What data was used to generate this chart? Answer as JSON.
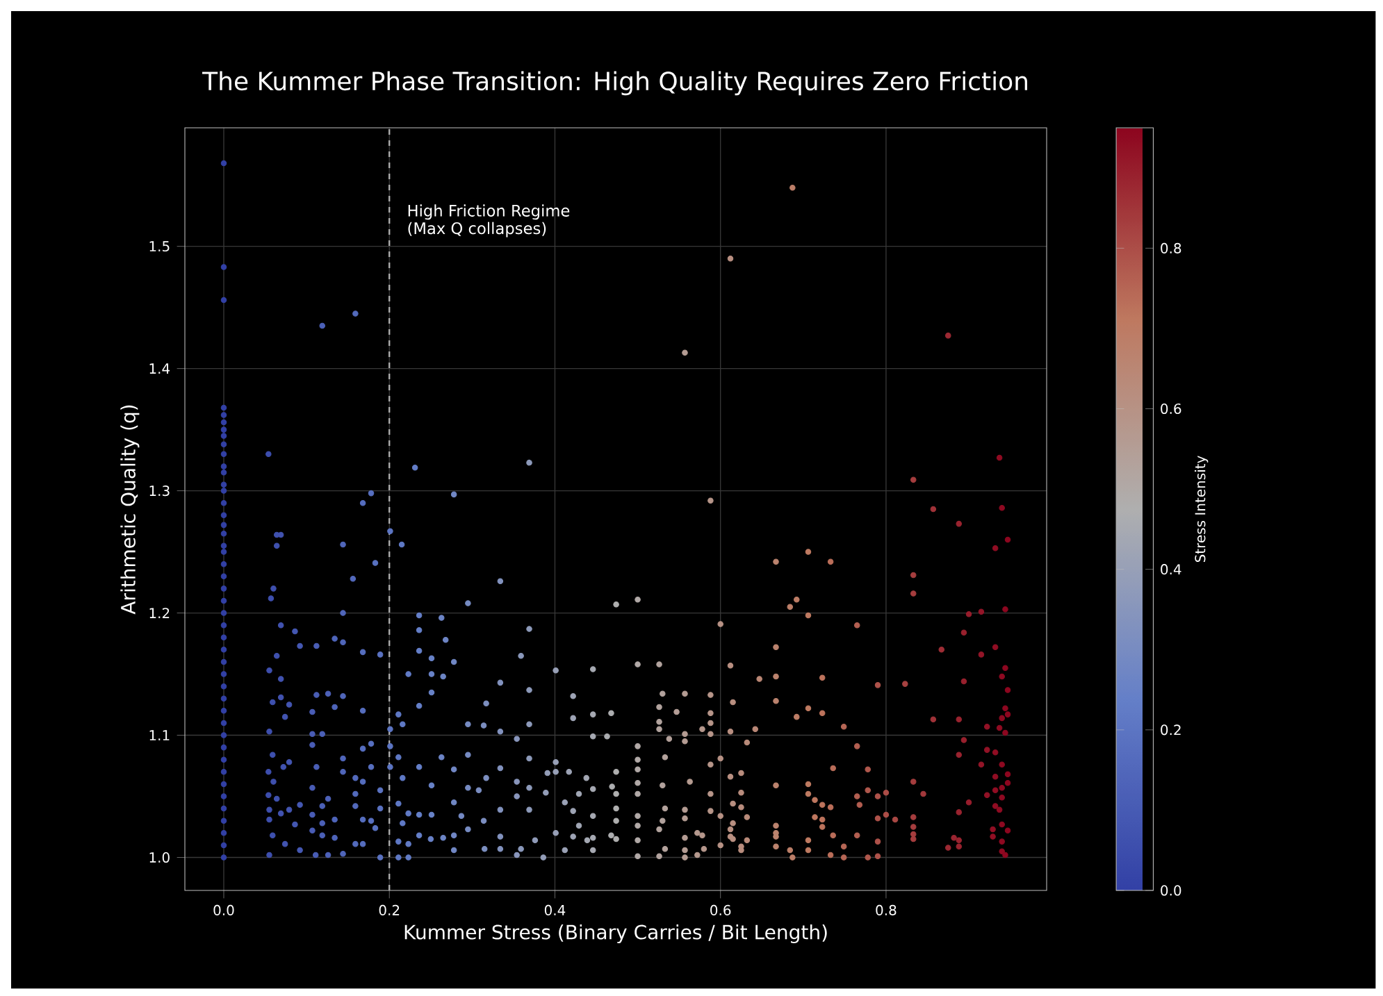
{
  "chart_data": {
    "type": "scatter",
    "title": "The Kummer Phase Transition: High Quality Requires Zero Friction",
    "xlabel": "Kummer Stress (Binary Carries / Bit Length)",
    "ylabel": "Arithmetic Quality (q)",
    "clabel": "Stress Intensity",
    "xlim": [
      -0.047,
      0.994
    ],
    "ylim": [
      0.973,
      1.597
    ],
    "xticks": [
      {
        "value": 0,
        "label": "0.0"
      },
      0.2,
      0.4,
      0.6,
      0.8
    ],
    "yticks": [
      {
        "value": 1,
        "label": "1.0"
      },
      1.1,
      1.2,
      1.3,
      1.4,
      1.5
    ],
    "clim": [
      0,
      0.95
    ],
    "cticks": [
      {
        "value": 0,
        "label": "0.0"
      },
      0.2,
      0.4,
      0.6,
      0.8
    ],
    "grid": true,
    "marker": "circle",
    "ref_lines": [
      {
        "axis": "x",
        "value": 0.2,
        "color": "#aaaaaa",
        "line_style": "dashed"
      }
    ],
    "annotations": [
      "High Friction Regime",
      "(Max Q collapses)"
    ],
    "x": [
      0,
      0,
      0,
      0,
      0,
      0,
      0,
      0,
      0,
      0,
      0,
      0,
      0,
      0,
      0,
      0,
      0,
      0,
      0,
      0,
      0,
      0,
      0,
      0,
      0,
      0,
      0,
      0,
      0,
      0,
      0,
      0,
      0,
      0,
      0,
      0,
      0,
      0,
      0,
      0,
      0,
      0,
      0,
      0,
      0,
      0.159,
      0.119,
      0.054,
      0.231,
      0.369,
      0.178,
      0.168,
      0.278,
      0.201,
      0.215,
      0.064,
      0.069,
      0.064,
      0.144,
      0.183,
      0.156,
      0.334,
      0.687,
      0.612,
      0.557,
      0.875,
      0.937,
      0.833,
      0.588,
      0.857,
      0.94,
      0.888,
      0.947,
      0.932,
      0.706,
      0.667,
      0.733,
      0.833,
      0.06,
      0.057,
      0.069,
      0.086,
      0.092,
      0.112,
      0.134,
      0.144,
      0.144,
      0.168,
      0.189,
      0.064,
      0.055,
      0.069,
      0.059,
      0.069,
      0.079,
      0.074,
      0.055,
      0.112,
      0.126,
      0.144,
      0.134,
      0.168,
      0.107,
      0.107,
      0.119,
      0.107,
      0.178,
      0.168,
      0.059,
      0.079,
      0.072,
      0.144,
      0.178,
      0.112,
      0.054,
      0.144,
      0.159,
      0.168,
      0.107,
      0.06,
      0.054,
      0.064,
      0.092,
      0.126,
      0.159,
      0.189,
      0.055,
      0.069,
      0.079,
      0.119,
      0.107,
      0.159,
      0.189,
      0.055,
      0.086,
      0.119,
      0.134,
      0.168,
      0.178,
      0.183,
      0.059,
      0.107,
      0.119,
      0.134,
      0.159,
      0.168,
      0.074,
      0.055,
      0.092,
      0.111,
      0.126,
      0.144,
      0.189,
      0.295,
      0.236,
      0.263,
      0.369,
      0.236,
      0.268,
      0.236,
      0.359,
      0.251,
      0.278,
      0.223,
      0.251,
      0.265,
      0.401,
      0.446,
      0.369,
      0.334,
      0.251,
      0.317,
      0.422,
      0.236,
      0.211,
      0.446,
      0.369,
      0.295,
      0.314,
      0.422,
      0.468,
      0.216,
      0.201,
      0.446,
      0.334,
      0.354,
      0.463,
      0.201,
      0.295,
      0.263,
      0.369,
      0.211,
      0.401,
      0.334,
      0.236,
      0.278,
      0.201,
      0.417,
      0.391,
      0.216,
      0.317,
      0.401,
      0.438,
      0.354,
      0.389,
      0.469,
      0.251,
      0.295,
      0.369,
      0.308,
      0.429,
      0.278,
      0.211,
      0.354,
      0.446,
      0.412,
      0.369,
      0.334,
      0.422,
      0.223,
      0.236,
      0.251,
      0.287,
      0.446,
      0.429,
      0.401,
      0.376,
      0.314,
      0.216,
      0.295,
      0.236,
      0.278,
      0.25,
      0.265,
      0.334,
      0.422,
      0.439,
      0.446,
      0.211,
      0.223,
      0.315,
      0.278,
      0.334,
      0.359,
      0.412,
      0.446,
      0.211,
      0.223,
      0.354,
      0.386,
      0.468,
      0.833,
      0.5,
      0.474,
      0.684,
      0.692,
      0.706,
      0.9,
      0.915,
      0.944,
      0.6,
      0.765,
      0.894,
      0.667,
      0.867,
      0.915,
      0.932,
      0.5,
      0.526,
      0.612,
      0.944,
      0.94,
      0.667,
      0.647,
      0.723,
      0.79,
      0.823,
      0.894,
      0.947,
      0.53,
      0.557,
      0.588,
      0.615,
      0.667,
      0.944,
      0.526,
      0.547,
      0.588,
      0.706,
      0.723,
      0.692,
      0.857,
      0.888,
      0.94,
      0.947,
      0.526,
      0.588,
      0.749,
      0.922,
      0.937,
      0.526,
      0.578,
      0.612,
      0.642,
      0.944,
      0.557,
      0.588,
      0.538,
      0.557,
      0.894,
      0.632,
      0.765,
      0.5,
      0.922,
      0.932,
      0.888,
      0.533,
      0.6,
      0.5,
      0.474,
      0.915,
      0.588,
      0.94,
      0.736,
      0.778,
      0.5,
      0.625,
      0.947,
      0.932,
      0.612,
      0.5,
      0.563,
      0.833,
      0.947,
      0.53,
      0.667,
      0.706,
      0.94,
      0.932,
      0.8,
      0.778,
      0.474,
      0.5,
      0.588,
      0.625,
      0.706,
      0.845,
      0.765,
      0.922,
      0.94,
      0.714,
      0.79,
      0.768,
      0.723,
      0.733,
      0.615,
      0.9,
      0.932,
      0.474,
      0.533,
      0.557,
      0.588,
      0.625,
      0.888,
      0.937,
      0.8,
      0.6,
      0.5,
      0.714,
      0.79,
      0.833,
      0.811,
      0.557,
      0.632,
      0.53,
      0.723,
      0.615,
      0.474,
      0.5,
      0.723,
      0.667,
      0.94,
      0.833,
      0.526,
      0.612,
      0.929,
      0.947,
      0.572,
      0.578,
      0.667,
      0.833,
      0.667,
      0.929,
      0.736,
      0.765,
      0.612,
      0.615,
      0.474,
      0.557,
      0.706,
      0.882,
      0.833,
      0.888,
      0.79,
      0.94,
      0.6,
      0.667,
      0.5,
      0.632,
      0.749,
      0.888,
      0.875,
      0.625,
      0.533,
      0.58,
      0.684,
      0.706,
      0.94,
      0.625,
      0.557,
      0.5,
      0.526,
      0.557,
      0.572,
      0.687,
      0.733,
      0.749,
      0.778,
      0.79,
      0.944
    ],
    "values": [
      1.568,
      1.483,
      1.456,
      1.368,
      1.362,
      1.356,
      1.35,
      1.345,
      1.338,
      1.33,
      1.32,
      1.315,
      1.305,
      1.3,
      1.29,
      1.28,
      1.272,
      1.265,
      1.255,
      1.25,
      1.24,
      1.23,
      1.22,
      1.21,
      1.2,
      1.19,
      1.18,
      1.17,
      1.16,
      1.15,
      1.14,
      1.13,
      1.12,
      1.11,
      1.1,
      1.09,
      1.08,
      1.07,
      1.06,
      1.05,
      1.04,
      1.03,
      1.02,
      1.01,
      1.0,
      1.445,
      1.435,
      1.33,
      1.319,
      1.323,
      1.298,
      1.29,
      1.297,
      1.267,
      1.256,
      1.264,
      1.264,
      1.255,
      1.256,
      1.241,
      1.228,
      1.226,
      1.548,
      1.49,
      1.413,
      1.427,
      1.327,
      1.309,
      1.292,
      1.285,
      1.286,
      1.273,
      1.26,
      1.253,
      1.25,
      1.242,
      1.242,
      1.231,
      1.22,
      1.212,
      1.19,
      1.185,
      1.173,
      1.173,
      1.179,
      1.176,
      1.2,
      1.168,
      1.166,
      1.165,
      1.153,
      1.146,
      1.127,
      1.131,
      1.125,
      1.115,
      1.103,
      1.133,
      1.134,
      1.132,
      1.123,
      1.12,
      1.119,
      1.101,
      1.101,
      1.092,
      1.093,
      1.089,
      1.084,
      1.078,
      1.074,
      1.081,
      1.074,
      1.074,
      1.07,
      1.07,
      1.065,
      1.062,
      1.057,
      1.062,
      1.051,
      1.048,
      1.043,
      1.048,
      1.052,
      1.055,
      1.039,
      1.036,
      1.039,
      1.042,
      1.035,
      1.042,
      1.04,
      1.031,
      1.027,
      1.028,
      1.031,
      1.031,
      1.03,
      1.024,
      1.018,
      1.022,
      1.018,
      1.016,
      1.011,
      1.011,
      1.011,
      1.002,
      1.006,
      1.002,
      1.002,
      1.003,
      1.0,
      1.208,
      1.198,
      1.196,
      1.187,
      1.186,
      1.178,
      1.169,
      1.165,
      1.163,
      1.16,
      1.15,
      1.15,
      1.148,
      1.153,
      1.154,
      1.137,
      1.143,
      1.135,
      1.126,
      1.132,
      1.124,
      1.117,
      1.117,
      1.109,
      1.109,
      1.108,
      1.114,
      1.118,
      1.109,
      1.105,
      1.099,
      1.103,
      1.097,
      1.099,
      1.091,
      1.084,
      1.082,
      1.081,
      1.082,
      1.078,
      1.073,
      1.074,
      1.072,
      1.074,
      1.07,
      1.069,
      1.065,
      1.065,
      1.07,
      1.065,
      1.062,
      1.053,
      1.058,
      1.059,
      1.057,
      1.057,
      1.055,
      1.052,
      1.045,
      1.044,
      1.05,
      1.056,
      1.045,
      1.039,
      1.039,
      1.038,
      1.036,
      1.035,
      1.035,
      1.034,
      1.034,
      1.026,
      1.02,
      1.014,
      1.03,
      1.028,
      1.023,
      1.018,
      1.018,
      1.015,
      1.016,
      1.017,
      1.017,
      1.014,
      1.016,
      1.013,
      1.011,
      1.007,
      1.006,
      1.007,
      1.007,
      1.006,
      1.006,
      1.0,
      1.0,
      1.002,
      1.0,
      1.018,
      1.216,
      1.211,
      1.207,
      1.205,
      1.211,
      1.198,
      1.199,
      1.201,
      1.203,
      1.191,
      1.19,
      1.184,
      1.172,
      1.17,
      1.166,
      1.172,
      1.158,
      1.158,
      1.157,
      1.155,
      1.148,
      1.148,
      1.146,
      1.147,
      1.141,
      1.142,
      1.144,
      1.137,
      1.134,
      1.134,
      1.133,
      1.127,
      1.128,
      1.122,
      1.123,
      1.119,
      1.118,
      1.122,
      1.118,
      1.115,
      1.113,
      1.113,
      1.114,
      1.117,
      1.111,
      1.11,
      1.107,
      1.107,
      1.106,
      1.105,
      1.105,
      1.103,
      1.105,
      1.102,
      1.101,
      1.101,
      1.097,
      1.095,
      1.096,
      1.094,
      1.091,
      1.091,
      1.088,
      1.086,
      1.084,
      1.082,
      1.081,
      1.08,
      1.07,
      1.076,
      1.076,
      1.076,
      1.073,
      1.072,
      1.072,
      1.069,
      1.068,
      1.066,
      1.066,
      1.061,
      1.062,
      1.062,
      1.061,
      1.059,
      1.059,
      1.06,
      1.057,
      1.055,
      1.053,
      1.055,
      1.052,
      1.052,
      1.052,
      1.053,
      1.052,
      1.052,
      1.05,
      1.051,
      1.049,
      1.047,
      1.05,
      1.043,
      1.043,
      1.041,
      1.044,
      1.045,
      1.042,
      1.04,
      1.04,
      1.039,
      1.038,
      1.041,
      1.037,
      1.039,
      1.035,
      1.034,
      1.034,
      1.033,
      1.032,
      1.033,
      1.031,
      1.032,
      1.033,
      1.03,
      1.031,
      1.028,
      1.03,
      1.026,
      1.025,
      1.026,
      1.027,
      1.025,
      1.023,
      1.023,
      1.023,
      1.022,
      1.02,
      1.018,
      1.02,
      1.019,
      1.017,
      1.017,
      1.018,
      1.018,
      1.017,
      1.015,
      1.015,
      1.016,
      1.014,
      1.016,
      1.015,
      1.014,
      1.013,
      1.013,
      1.01,
      1.009,
      1.014,
      1.014,
      1.009,
      1.009,
      1.008,
      1.009,
      1.007,
      1.007,
      1.006,
      1.006,
      1.005,
      1.006,
      1.006,
      1.001,
      1.001,
      1.0,
      1.002,
      1.0,
      1.002,
      1.0,
      1.0,
      1.001,
      1.002
    ],
    "cvalues": [
      0,
      0,
      0,
      0,
      0,
      0,
      0,
      0,
      0,
      0,
      0,
      0,
      0,
      0,
      0,
      0,
      0,
      0,
      0,
      0,
      0,
      0,
      0,
      0,
      0,
      0,
      0,
      0,
      0,
      0,
      0,
      0,
      0,
      0,
      0,
      0,
      0,
      0,
      0,
      0,
      0,
      0,
      0,
      0,
      0,
      0.159,
      0.119,
      0.054,
      0.231,
      0.369,
      0.178,
      0.168,
      0.278,
      0.201,
      0.215,
      0.064,
      0.069,
      0.064,
      0.144,
      0.183,
      0.156,
      0.334,
      0.687,
      0.612,
      0.557,
      0.875,
      0.937,
      0.833,
      0.588,
      0.857,
      0.94,
      0.888,
      0.947,
      0.932,
      0.706,
      0.667,
      0.733,
      0.833,
      0.06,
      0.057,
      0.069,
      0.086,
      0.092,
      0.112,
      0.134,
      0.144,
      0.144,
      0.168,
      0.189,
      0.064,
      0.055,
      0.069,
      0.059,
      0.069,
      0.079,
      0.074,
      0.055,
      0.112,
      0.126,
      0.144,
      0.134,
      0.168,
      0.107,
      0.107,
      0.119,
      0.107,
      0.178,
      0.168,
      0.059,
      0.079,
      0.072,
      0.144,
      0.178,
      0.112,
      0.054,
      0.144,
      0.159,
      0.168,
      0.107,
      0.06,
      0.054,
      0.064,
      0.092,
      0.126,
      0.159,
      0.189,
      0.055,
      0.069,
      0.079,
      0.119,
      0.107,
      0.159,
      0.189,
      0.055,
      0.086,
      0.119,
      0.134,
      0.168,
      0.178,
      0.183,
      0.059,
      0.107,
      0.119,
      0.134,
      0.159,
      0.168,
      0.074,
      0.055,
      0.092,
      0.111,
      0.126,
      0.144,
      0.189,
      0.295,
      0.236,
      0.263,
      0.369,
      0.236,
      0.268,
      0.236,
      0.359,
      0.251,
      0.278,
      0.223,
      0.251,
      0.265,
      0.401,
      0.446,
      0.369,
      0.334,
      0.251,
      0.317,
      0.422,
      0.236,
      0.211,
      0.446,
      0.369,
      0.295,
      0.314,
      0.422,
      0.468,
      0.216,
      0.201,
      0.446,
      0.334,
      0.354,
      0.463,
      0.201,
      0.295,
      0.263,
      0.369,
      0.211,
      0.401,
      0.334,
      0.236,
      0.278,
      0.201,
      0.417,
      0.391,
      0.216,
      0.317,
      0.401,
      0.438,
      0.354,
      0.389,
      0.469,
      0.251,
      0.295,
      0.369,
      0.308,
      0.429,
      0.278,
      0.211,
      0.354,
      0.446,
      0.412,
      0.369,
      0.334,
      0.422,
      0.223,
      0.236,
      0.251,
      0.287,
      0.446,
      0.429,
      0.401,
      0.376,
      0.314,
      0.216,
      0.295,
      0.236,
      0.278,
      0.25,
      0.265,
      0.334,
      0.422,
      0.439,
      0.446,
      0.211,
      0.223,
      0.315,
      0.278,
      0.334,
      0.359,
      0.412,
      0.446,
      0.211,
      0.223,
      0.354,
      0.386,
      0.468,
      0.833,
      0.5,
      0.474,
      0.684,
      0.692,
      0.706,
      0.9,
      0.915,
      0.944,
      0.6,
      0.765,
      0.894,
      0.667,
      0.867,
      0.915,
      0.932,
      0.5,
      0.526,
      0.612,
      0.944,
      0.94,
      0.667,
      0.647,
      0.723,
      0.79,
      0.823,
      0.894,
      0.947,
      0.53,
      0.557,
      0.588,
      0.615,
      0.667,
      0.944,
      0.526,
      0.547,
      0.588,
      0.706,
      0.723,
      0.692,
      0.857,
      0.888,
      0.94,
      0.947,
      0.526,
      0.588,
      0.749,
      0.922,
      0.937,
      0.526,
      0.578,
      0.612,
      0.642,
      0.944,
      0.557,
      0.588,
      0.538,
      0.557,
      0.894,
      0.632,
      0.765,
      0.5,
      0.922,
      0.932,
      0.888,
      0.533,
      0.6,
      0.5,
      0.474,
      0.915,
      0.588,
      0.94,
      0.736,
      0.778,
      0.5,
      0.625,
      0.947,
      0.932,
      0.612,
      0.5,
      0.563,
      0.833,
      0.947,
      0.53,
      0.667,
      0.706,
      0.94,
      0.932,
      0.8,
      0.778,
      0.474,
      0.5,
      0.588,
      0.625,
      0.706,
      0.845,
      0.765,
      0.922,
      0.94,
      0.714,
      0.79,
      0.768,
      0.723,
      0.733,
      0.615,
      0.9,
      0.932,
      0.474,
      0.533,
      0.557,
      0.588,
      0.625,
      0.888,
      0.937,
      0.8,
      0.6,
      0.5,
      0.714,
      0.79,
      0.833,
      0.811,
      0.557,
      0.632,
      0.53,
      0.723,
      0.615,
      0.474,
      0.5,
      0.723,
      0.667,
      0.94,
      0.833,
      0.526,
      0.612,
      0.929,
      0.947,
      0.572,
      0.578,
      0.667,
      0.833,
      0.667,
      0.929,
      0.736,
      0.765,
      0.612,
      0.615,
      0.474,
      0.557,
      0.706,
      0.882,
      0.833,
      0.888,
      0.79,
      0.94,
      0.6,
      0.667,
      0.5,
      0.632,
      0.749,
      0.888,
      0.875,
      0.625,
      0.533,
      0.58,
      0.684,
      0.706,
      0.94,
      0.625,
      0.557,
      0.5,
      0.526,
      0.557,
      0.572,
      0.687,
      0.733,
      0.749,
      0.778,
      0.79,
      0.944
    ]
  }
}
